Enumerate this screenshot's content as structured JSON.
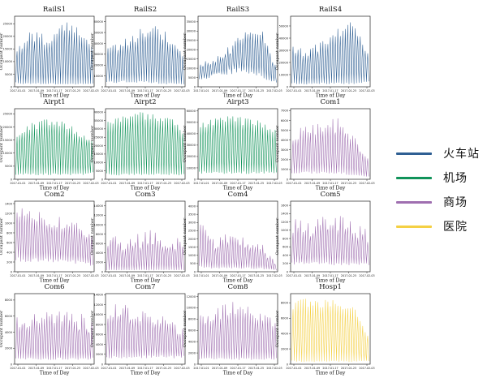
{
  "chart_data": [
    {
      "type": "line",
      "title": "RailS1",
      "xlabel": "Time of Day",
      "ylabel": "Occupant number",
      "color": "#2f5f93",
      "ylim": [
        0,
        28000
      ],
      "yticks": [
        0,
        5000,
        10000,
        15000,
        20000,
        25000
      ],
      "yticklabels": [
        "0",
        "5000",
        "10000",
        "15000",
        "20000",
        "25000"
      ],
      "series_group": "火车站",
      "profile": {
        "days": 31,
        "base": [
          14000,
          21000,
          18000,
          24000,
          21000,
          14000
        ],
        "trough": [
          1500,
          1200,
          1500,
          1000,
          1200,
          1500
        ],
        "noise": 0.12
      }
    },
    {
      "type": "line",
      "title": "RailS2",
      "xlabel": "Time of Day",
      "ylabel": "Occupant number",
      "color": "#2f5f93",
      "ylim": [
        0,
        65000
      ],
      "yticks": [
        0,
        10000,
        20000,
        30000,
        40000,
        50000,
        60000
      ],
      "yticklabels": [
        "0",
        "10000",
        "20000",
        "30000",
        "40000",
        "50000",
        "60000"
      ],
      "series_group": "火车站",
      "profile": {
        "days": 31,
        "base": [
          32000,
          38000,
          48000,
          52000,
          45000,
          25000
        ],
        "trough": [
          4000,
          5000,
          5000,
          4000,
          3000,
          3000
        ],
        "noise": 0.12
      }
    },
    {
      "type": "line",
      "title": "RailS3",
      "xlabel": "Time of Day",
      "ylabel": "Occupant number",
      "color": "#2f5f93",
      "ylim": [
        0,
        38000
      ],
      "yticks": [
        0,
        5000,
        10000,
        15000,
        20000,
        25000,
        30000,
        35000
      ],
      "yticklabels": [
        "0",
        "5000",
        "10000",
        "15000",
        "20000",
        "25000",
        "30000",
        "35000"
      ],
      "series_group": "火车站",
      "profile": {
        "days": 31,
        "base": [
          12000,
          14000,
          20000,
          28000,
          30000,
          10000
        ],
        "trough": [
          4000,
          6000,
          8000,
          9000,
          6000,
          2000
        ],
        "noise": 0.12
      }
    },
    {
      "type": "line",
      "title": "RailS4",
      "xlabel": "Time of Day",
      "ylabel": "Occupant number",
      "color": "#2f5f93",
      "ylim": [
        0,
        58000
      ],
      "yticks": [
        0,
        10000,
        20000,
        30000,
        40000,
        50000
      ],
      "yticklabels": [
        "0",
        "10000",
        "20000",
        "30000",
        "40000",
        "50000"
      ],
      "series_group": "火车站",
      "profile": {
        "days": 31,
        "base": [
          30000,
          28000,
          34000,
          45000,
          52000,
          26000
        ],
        "trough": [
          3000,
          2500,
          3000,
          3000,
          3000,
          4000
        ],
        "noise": 0.12
      }
    },
    {
      "type": "line",
      "title": "Airpt1",
      "xlabel": "Time of Day",
      "ylabel": "Occupant number",
      "color": "#11935a",
      "ylim": [
        0,
        27000
      ],
      "yticks": [
        0,
        5000,
        10000,
        15000,
        20000,
        25000
      ],
      "yticklabels": [
        "0",
        "5000",
        "10000",
        "15000",
        "20000",
        "25000"
      ],
      "series_group": "机场",
      "profile": {
        "days": 31,
        "base": [
          16000,
          20000,
          22000,
          21000,
          18000,
          15000
        ],
        "trough": [
          2000,
          2000,
          2000,
          2000,
          2000,
          2500
        ],
        "noise": 0.08
      }
    },
    {
      "type": "line",
      "title": "Airpt2",
      "xlabel": "Time of Day",
      "ylabel": "Occupant number",
      "color": "#11935a",
      "ylim": [
        0,
        42000
      ],
      "yticks": [
        0,
        5000,
        10000,
        15000,
        20000,
        25000,
        30000,
        35000,
        40000
      ],
      "yticklabels": [
        "0",
        "5000",
        "10000",
        "15000",
        "20000",
        "25000",
        "30000",
        "35000",
        "40000"
      ],
      "series_group": "机场",
      "profile": {
        "days": 31,
        "base": [
          32000,
          36000,
          38000,
          37000,
          36000,
          28000
        ],
        "trough": [
          3000,
          3000,
          3000,
          3000,
          3000,
          3000
        ],
        "noise": 0.06
      }
    },
    {
      "type": "line",
      "title": "Airpt3",
      "xlabel": "Time of Day",
      "ylabel": "Occupant number",
      "color": "#11935a",
      "ylim": [
        0,
        62000
      ],
      "yticks": [
        0,
        10000,
        20000,
        30000,
        40000,
        50000,
        60000
      ],
      "yticklabels": [
        "0",
        "10000",
        "20000",
        "30000",
        "40000",
        "50000",
        "60000"
      ],
      "series_group": "机场",
      "profile": {
        "days": 31,
        "base": [
          45000,
          52000,
          54000,
          50000,
          48000,
          40000
        ],
        "trough": [
          6000,
          6000,
          6000,
          6000,
          6000,
          6000
        ],
        "noise": 0.08
      }
    },
    {
      "type": "line",
      "title": "Com1",
      "xlabel": "Time of Day",
      "ylabel": "Occupant number",
      "color": "#9f6fb0",
      "ylim": [
        0,
        7200
      ],
      "yticks": [
        0,
        1000,
        2000,
        3000,
        4000,
        5000,
        6000,
        7000
      ],
      "yticklabels": [
        "0",
        "1000",
        "2000",
        "3000",
        "4000",
        "5000",
        "6000",
        "7000"
      ],
      "series_group": "商场",
      "profile": {
        "days": 31,
        "base": [
          4500,
          4800,
          5200,
          5500,
          4000,
          1800
        ],
        "trough": [
          600,
          700,
          700,
          700,
          500,
          300
        ],
        "noise": 0.14
      }
    },
    {
      "type": "line",
      "title": "Com2",
      "xlabel": "Time of Day",
      "ylabel": "Occupant number",
      "color": "#9f6fb0",
      "ylim": [
        0,
        1450
      ],
      "yticks": [
        0,
        200,
        400,
        600,
        800,
        1000,
        1200,
        1400
      ],
      "yticklabels": [
        "0",
        "200",
        "400",
        "600",
        "800",
        "1000",
        "1200",
        "1400"
      ],
      "series_group": "商场",
      "profile": {
        "days": 31,
        "base": [
          1200,
          1150,
          1050,
          1000,
          900,
          700
        ],
        "trough": [
          250,
          250,
          250,
          250,
          200,
          150
        ],
        "noise": 0.12
      }
    },
    {
      "type": "line",
      "title": "Com3",
      "xlabel": "Time of Day",
      "ylabel": "Occupant number",
      "color": "#9f6fb0",
      "ylim": [
        0,
        15000
      ],
      "yticks": [
        0,
        2000,
        4000,
        6000,
        8000,
        10000,
        12000,
        14000
      ],
      "yticklabels": [
        "0",
        "2000",
        "4000",
        "6000",
        "8000",
        "10000",
        "12000",
        "14000"
      ],
      "series_group": "商场",
      "profile": {
        "days": 31,
        "base": [
          7000,
          5500,
          6500,
          7500,
          6500,
          5500
        ],
        "trough": [
          400,
          400,
          400,
          400,
          400,
          400
        ],
        "noise": 0.25
      }
    },
    {
      "type": "line",
      "title": "Com4",
      "xlabel": "Time of Day",
      "ylabel": "Occupant number",
      "color": "#9f6fb0",
      "ylim": [
        0,
        4300
      ],
      "yticks": [
        0,
        500,
        1000,
        1500,
        2000,
        2500,
        3000,
        3500,
        4000
      ],
      "yticklabels": [
        "0",
        "500",
        "1000",
        "1500",
        "2000",
        "2500",
        "3000",
        "3500",
        "4000"
      ],
      "series_group": "商场",
      "profile": {
        "days": 31,
        "base": [
          2800,
          1800,
          1900,
          1800,
          1600,
          400
        ],
        "trough": [
          300,
          250,
          250,
          250,
          200,
          100
        ],
        "noise": 0.22
      }
    },
    {
      "type": "line",
      "title": "Com5",
      "xlabel": "Time of Day",
      "ylabel": "Occupant number",
      "color": "#9f6fb0",
      "ylim": [
        0,
        1700
      ],
      "yticks": [
        0,
        200,
        400,
        600,
        800,
        1000,
        1200,
        1400,
        1600
      ],
      "yticklabels": [
        "0",
        "200",
        "400",
        "600",
        "800",
        "1000",
        "1200",
        "1400",
        "1600"
      ],
      "series_group": "商场",
      "profile": {
        "days": 31,
        "base": [
          1100,
          1000,
          1250,
          1150,
          1000,
          850
        ],
        "trough": [
          200,
          200,
          200,
          200,
          200,
          200
        ],
        "noise": 0.2
      }
    },
    {
      "type": "line",
      "title": "Com6",
      "xlabel": "Time of Day",
      "ylabel": "Occupant number",
      "color": "#9f6fb0",
      "ylim": [
        0,
        8800
      ],
      "yticks": [
        0,
        2000,
        4000,
        6000,
        8000
      ],
      "yticklabels": [
        "0",
        "2000",
        "4000",
        "6000",
        "8000"
      ],
      "series_group": "商场",
      "profile": {
        "days": 31,
        "base": [
          5500,
          5000,
          6500,
          6000,
          5500,
          4500
        ],
        "trough": [
          700,
          700,
          700,
          700,
          700,
          700
        ],
        "noise": 0.2
      }
    },
    {
      "type": "line",
      "title": "Com7",
      "xlabel": "Time of Day",
      "ylabel": "Occupant number",
      "color": "#9f6fb0",
      "ylim": [
        0,
        14200
      ],
      "yticks": [
        0,
        2000,
        4000,
        6000,
        8000,
        10000,
        12000,
        14000
      ],
      "yticklabels": [
        "0",
        "2000",
        "4000",
        "6000",
        "8000",
        "10000",
        "12000",
        "14000"
      ],
      "series_group": "商场",
      "profile": {
        "days": 31,
        "base": [
          10000,
          11000,
          10000,
          9000,
          8000,
          6500
        ],
        "trough": [
          1500,
          1500,
          1500,
          1500,
          1500,
          1500
        ],
        "noise": 0.15
      }
    },
    {
      "type": "line",
      "title": "Com8",
      "xlabel": "Time of Day",
      "ylabel": "Occupant number",
      "color": "#9f6fb0",
      "ylim": [
        0,
        12500
      ],
      "yticks": [
        0,
        2000,
        4000,
        6000,
        8000,
        10000,
        12000
      ],
      "yticklabels": [
        "0",
        "2000",
        "4000",
        "6000",
        "8000",
        "10000",
        "12000"
      ],
      "series_group": "商场",
      "profile": {
        "days": 31,
        "base": [
          8000,
          9000,
          10000,
          9500,
          8500,
          7000
        ],
        "trough": [
          1000,
          1000,
          1000,
          1000,
          1000,
          1000
        ],
        "noise": 0.15
      }
    },
    {
      "type": "line",
      "title": "Hosp1",
      "xlabel": "Time of Day",
      "ylabel": "Occupant number",
      "color": "#f4d044",
      "ylim": [
        0,
        9200
      ],
      "yticks": [
        0,
        2000,
        4000,
        6000,
        8000
      ],
      "yticklabels": [
        "0",
        "2000",
        "4000",
        "6000",
        "8000"
      ],
      "series_group": "医院",
      "profile": {
        "days": 31,
        "base": [
          7500,
          7800,
          8200,
          7800,
          7000,
          3500
        ],
        "trough": [
          400,
          400,
          400,
          400,
          400,
          400
        ],
        "noise": 0.1
      }
    }
  ],
  "x_ticklabels": [
    "2017-01-01",
    "2017-01-09",
    "2017-01-17",
    "2017-01-25",
    "2017-02-03"
  ],
  "legend": [
    {
      "label": "火车站",
      "color": "#2f5f93"
    },
    {
      "label": "机场",
      "color": "#11935a"
    },
    {
      "label": "商场",
      "color": "#9f6fb0"
    },
    {
      "label": "医院",
      "color": "#f4d044"
    }
  ]
}
